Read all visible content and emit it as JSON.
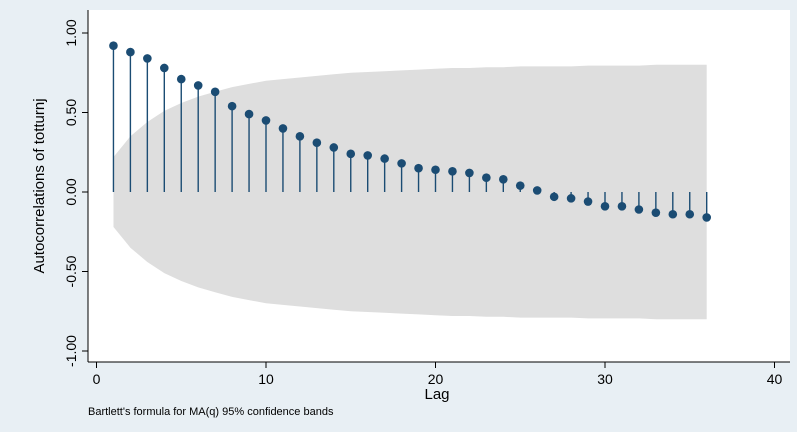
{
  "chart_data": {
    "type": "stem",
    "title": "",
    "xlabel": "Lag",
    "ylabel": "Autocorrelations of totturnj",
    "note": "Bartlett's formula for MA(q) 95% confidence bands",
    "xlim": [
      0,
      40
    ],
    "ylim": [
      -1,
      1
    ],
    "x_ticks": [
      0,
      10,
      20,
      30,
      40
    ],
    "y_ticks": [
      -1.0,
      -0.5,
      0.0,
      0.5,
      1.0
    ],
    "x_tick_labels": [
      "0",
      "10",
      "20",
      "30",
      "40"
    ],
    "y_tick_labels": [
      "-1.00",
      "-0.50",
      "0.00",
      "0.50",
      "1.00"
    ],
    "grid": false,
    "lags": [
      1,
      2,
      3,
      4,
      5,
      6,
      7,
      8,
      9,
      10,
      11,
      12,
      13,
      14,
      15,
      16,
      17,
      18,
      19,
      20,
      21,
      22,
      23,
      24,
      25,
      26,
      27,
      28,
      29,
      30,
      31,
      32,
      33,
      34,
      35,
      36
    ],
    "acf": [
      0.92,
      0.88,
      0.84,
      0.78,
      0.71,
      0.67,
      0.63,
      0.54,
      0.49,
      0.45,
      0.4,
      0.35,
      0.31,
      0.28,
      0.24,
      0.23,
      0.21,
      0.18,
      0.15,
      0.14,
      0.13,
      0.12,
      0.09,
      0.08,
      0.04,
      0.01,
      -0.03,
      -0.04,
      -0.06,
      -0.09,
      -0.09,
      -0.11,
      -0.13,
      -0.14,
      -0.14,
      -0.16
    ],
    "confidence_band": [
      0.22,
      0.35,
      0.44,
      0.51,
      0.56,
      0.6,
      0.63,
      0.66,
      0.68,
      0.7,
      0.71,
      0.72,
      0.73,
      0.74,
      0.75,
      0.755,
      0.76,
      0.765,
      0.77,
      0.775,
      0.78,
      0.78,
      0.785,
      0.785,
      0.79,
      0.79,
      0.79,
      0.79,
      0.795,
      0.795,
      0.795,
      0.795,
      0.8,
      0.8,
      0.8,
      0.8
    ],
    "colors": {
      "background": "#e8eff4",
      "plot_background": "#ffffff",
      "band": "#dedede",
      "stem": "#1b4c73",
      "marker": "#1b4c73"
    }
  }
}
